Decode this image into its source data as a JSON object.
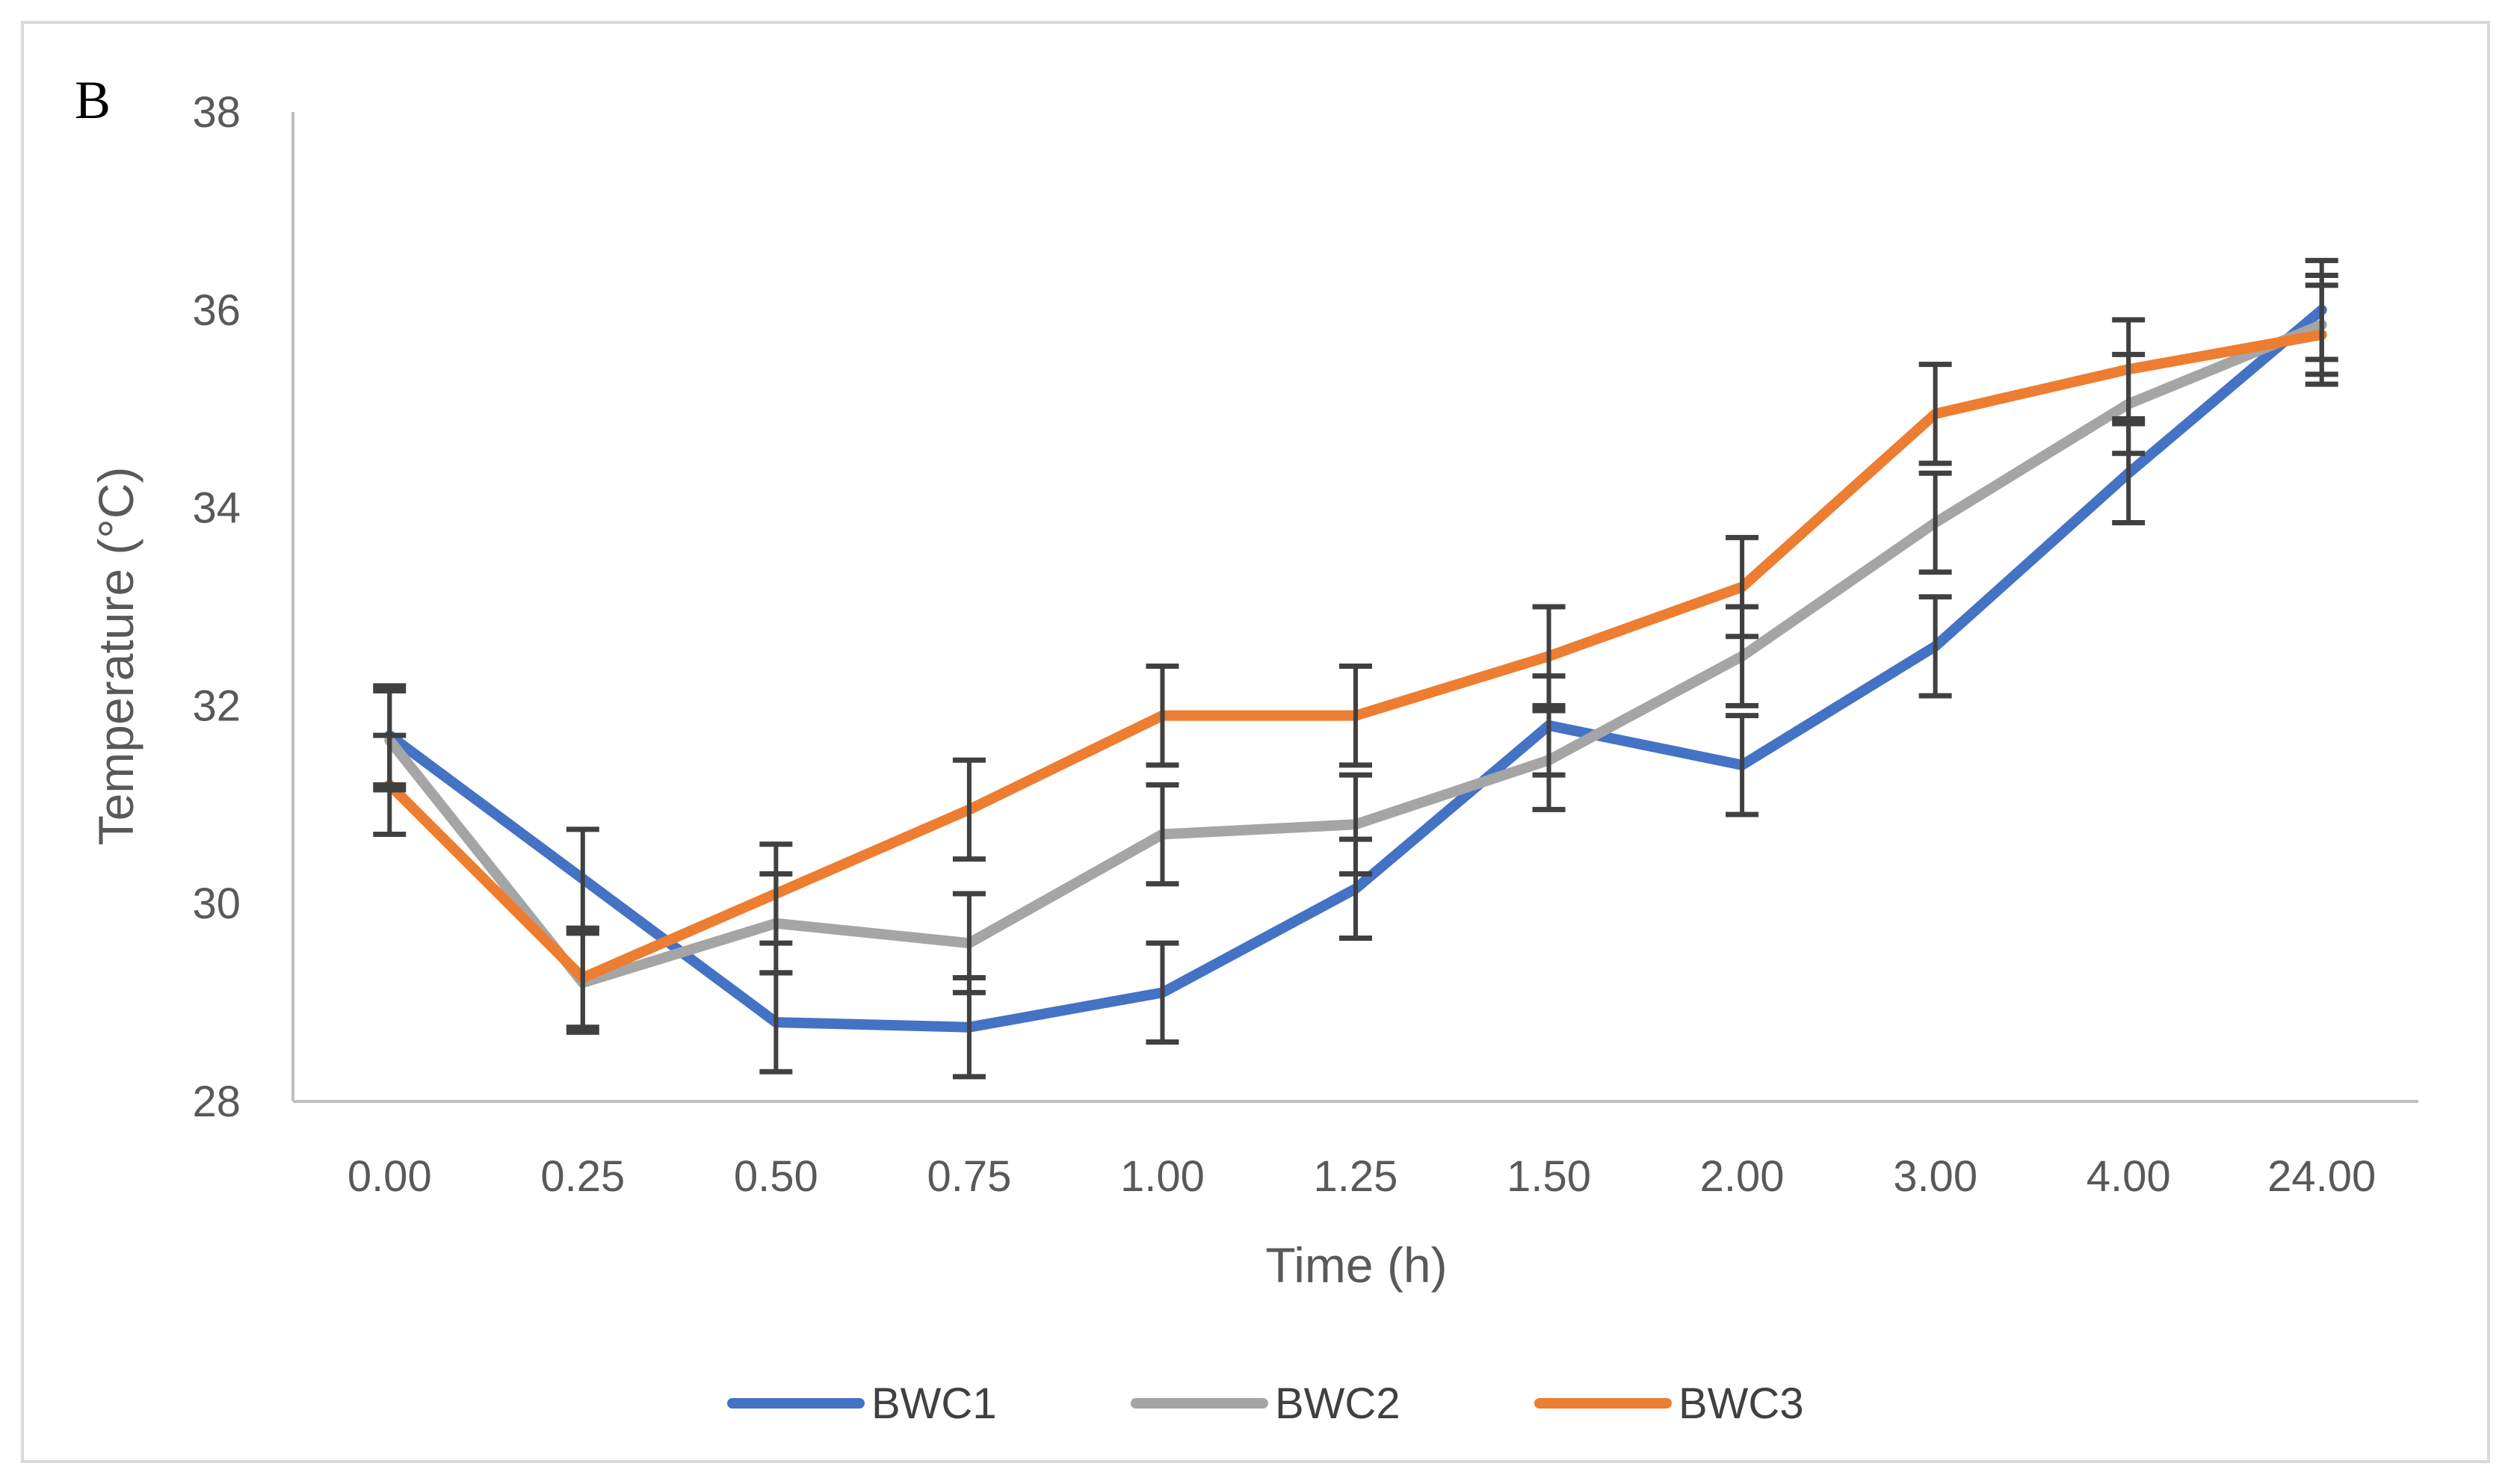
{
  "chart_data": {
    "type": "line",
    "panel_label": "B",
    "xlabel": "Time (h)",
    "ylabel": "Temperature (°C)",
    "categories": [
      "0.00",
      "0.25",
      "0.50",
      "0.75",
      "1.00",
      "1.25",
      "1.50",
      "2.00",
      "3.00",
      "4.00",
      "24.00"
    ],
    "ylim": [
      28,
      38
    ],
    "yticks": [
      "28",
      "30",
      "32",
      "34",
      "36",
      "38"
    ],
    "grid": false,
    "legend_position": "bottom",
    "series": [
      {
        "name": "BWC1",
        "color": "#4472C4",
        "values": [
          31.7,
          30.25,
          28.8,
          28.75,
          29.1,
          30.15,
          31.8,
          31.4,
          32.6,
          34.35,
          36.0
        ],
        "errors": [
          0.5,
          0.5,
          0.5,
          0.5,
          0.5,
          0.5,
          0.5,
          0.5,
          0.5,
          0.5,
          0.5
        ]
      },
      {
        "name": "BWC2",
        "color": "#A5A5A5",
        "values": [
          31.65,
          29.2,
          29.8,
          29.6,
          30.7,
          30.8,
          31.45,
          32.5,
          33.85,
          35.05,
          35.85
        ],
        "errors": [
          0.5,
          0.5,
          0.5,
          0.5,
          0.5,
          0.5,
          0.5,
          0.5,
          0.5,
          0.5,
          0.5
        ]
      },
      {
        "name": "BWC3",
        "color": "#ED7D31",
        "values": [
          31.2,
          29.25,
          30.1,
          30.95,
          31.9,
          31.9,
          32.5,
          33.2,
          34.95,
          35.4,
          35.75
        ],
        "errors": [
          0.5,
          0.5,
          0.5,
          0.5,
          0.5,
          0.5,
          0.5,
          0.5,
          0.5,
          0.5,
          0.5
        ]
      }
    ],
    "error_bar_color": "#404040"
  }
}
